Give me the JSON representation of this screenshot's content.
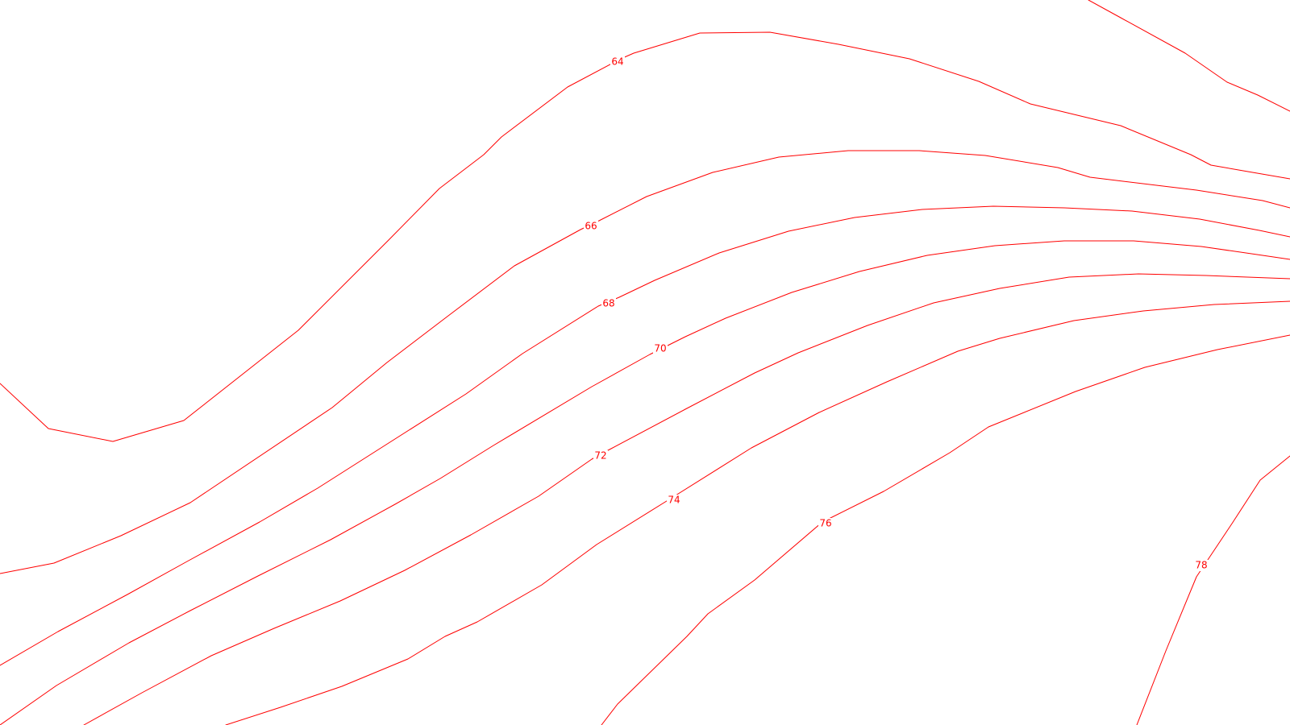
{
  "map": {
    "type": "contour-lines",
    "line_color": "#ff0000",
    "background_color": "#ffffff",
    "contours": [
      {
        "level": "64"
      },
      {
        "level": "66"
      },
      {
        "level": "68"
      },
      {
        "level": "70"
      },
      {
        "level": "72"
      },
      {
        "level": "74"
      },
      {
        "level": "76"
      },
      {
        "level": "78"
      }
    ]
  }
}
